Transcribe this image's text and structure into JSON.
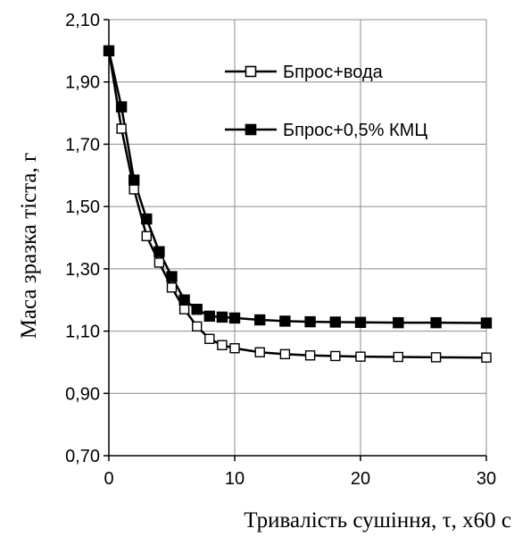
{
  "chart_data": {
    "type": "line",
    "title": "",
    "xlabel": "Тривалість сушіння,  τ, x60 с",
    "ylabel": "Маса зразка тіста, г",
    "xlim": [
      0,
      30
    ],
    "ylim": [
      0.7,
      2.1
    ],
    "grid": true,
    "legend_position": "top-right",
    "x_ticks": [
      0,
      10,
      20,
      30
    ],
    "x_tick_labels": [
      "0",
      "10",
      "20",
      "30"
    ],
    "y_ticks": [
      0.7,
      0.9,
      1.1,
      1.3,
      1.5,
      1.7,
      1.9,
      2.1
    ],
    "y_tick_labels": [
      "0,70",
      "0,90",
      "1,10",
      "1,30",
      "1,50",
      "1,70",
      "1,90",
      "2,10"
    ],
    "series": [
      {
        "name": "Бпрос+вода",
        "marker": "square-open",
        "color": "#000000",
        "x": [
          0,
          1,
          2,
          3,
          4,
          5,
          6,
          7,
          8,
          9,
          10,
          12,
          14,
          16,
          18,
          20,
          23,
          26,
          30
        ],
        "y": [
          2.0,
          1.75,
          1.555,
          1.405,
          1.32,
          1.24,
          1.17,
          1.115,
          1.075,
          1.055,
          1.045,
          1.032,
          1.026,
          1.022,
          1.02,
          1.018,
          1.017,
          1.016,
          1.015
        ]
      },
      {
        "name": "Бпрос+0,5% КМЦ",
        "marker": "square-filled",
        "color": "#000000",
        "x": [
          0,
          1,
          2,
          3,
          4,
          5,
          6,
          7,
          8,
          9,
          10,
          12,
          14,
          16,
          18,
          20,
          23,
          26,
          30
        ],
        "y": [
          2.0,
          1.82,
          1.585,
          1.46,
          1.355,
          1.275,
          1.2,
          1.17,
          1.148,
          1.145,
          1.142,
          1.136,
          1.132,
          1.13,
          1.129,
          1.128,
          1.127,
          1.127,
          1.126
        ]
      }
    ]
  }
}
